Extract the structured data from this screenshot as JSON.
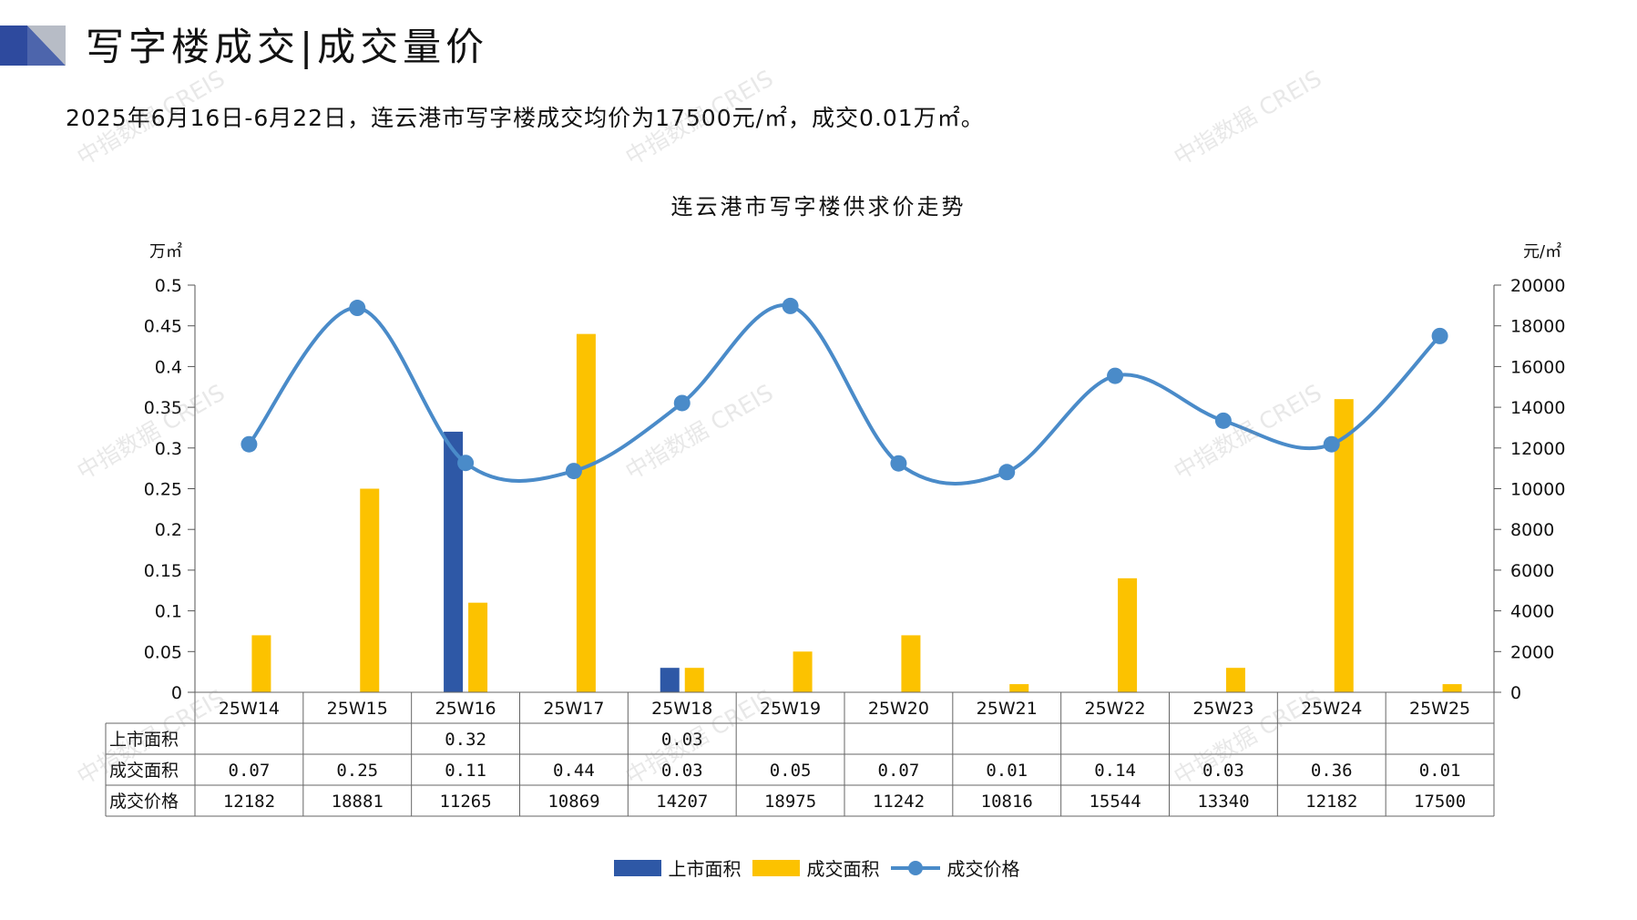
{
  "header": {
    "title": "写字楼成交|成交量价",
    "summary": "2025年6月16日-6月22日，连云港市写字楼成交均价为17500元/㎡，成交0.01万㎡。"
  },
  "watermark": "中指数据 CREIS",
  "colors": {
    "supply": "#2e58a6",
    "deal_area": "#fcc200",
    "price": "#4a8bc9",
    "logo_dark": "#2e4a9e",
    "logo_light": "#b7bcc6"
  },
  "chart_data": {
    "type": "bar",
    "title": "连云港市写字楼供求价走势",
    "ylabel_left": "万㎡",
    "ylabel_right": "元/㎡",
    "ylim_left": [
      0,
      0.5
    ],
    "ylim_right": [
      0,
      20000
    ],
    "yticks_left": [
      "0",
      "0.05",
      "0.1",
      "0.15",
      "0.2",
      "0.25",
      "0.3",
      "0.35",
      "0.4",
      "0.45",
      "0.5"
    ],
    "yticks_right": [
      "0",
      "2000",
      "4000",
      "6000",
      "8000",
      "10000",
      "12000",
      "14000",
      "16000",
      "18000",
      "20000"
    ],
    "categories": [
      "25W14",
      "25W15",
      "25W16",
      "25W17",
      "25W18",
      "25W19",
      "25W20",
      "25W21",
      "25W22",
      "25W23",
      "25W24",
      "25W25"
    ],
    "series": [
      {
        "name": "上市面积",
        "type": "bar",
        "axis": "left",
        "values": [
          null,
          null,
          0.32,
          null,
          0.03,
          null,
          null,
          null,
          null,
          null,
          null,
          null
        ],
        "labels": [
          "",
          "",
          "0.32",
          "",
          "0.03",
          "",
          "",
          "",
          "",
          "",
          "",
          ""
        ]
      },
      {
        "name": "成交面积",
        "type": "bar",
        "axis": "left",
        "values": [
          0.07,
          0.25,
          0.11,
          0.44,
          0.03,
          0.05,
          0.07,
          0.01,
          0.14,
          0.03,
          0.36,
          0.01
        ],
        "labels": [
          "0.07",
          "0.25",
          "0.11",
          "0.44",
          "0.03",
          "0.05",
          "0.07",
          "0.01",
          "0.14",
          "0.03",
          "0.36",
          "0.01"
        ]
      },
      {
        "name": "成交价格",
        "type": "line",
        "axis": "right",
        "values": [
          12182,
          18881,
          11265,
          10869,
          14207,
          18975,
          11242,
          10816,
          15544,
          13340,
          12182,
          17500
        ],
        "labels": [
          "12182",
          "18881",
          "11265",
          "10869",
          "14207",
          "18975",
          "11242",
          "10816",
          "15544",
          "13340",
          "12182",
          "17500"
        ]
      }
    ],
    "data_table": true,
    "legend": "bottom-center",
    "grid": false
  }
}
